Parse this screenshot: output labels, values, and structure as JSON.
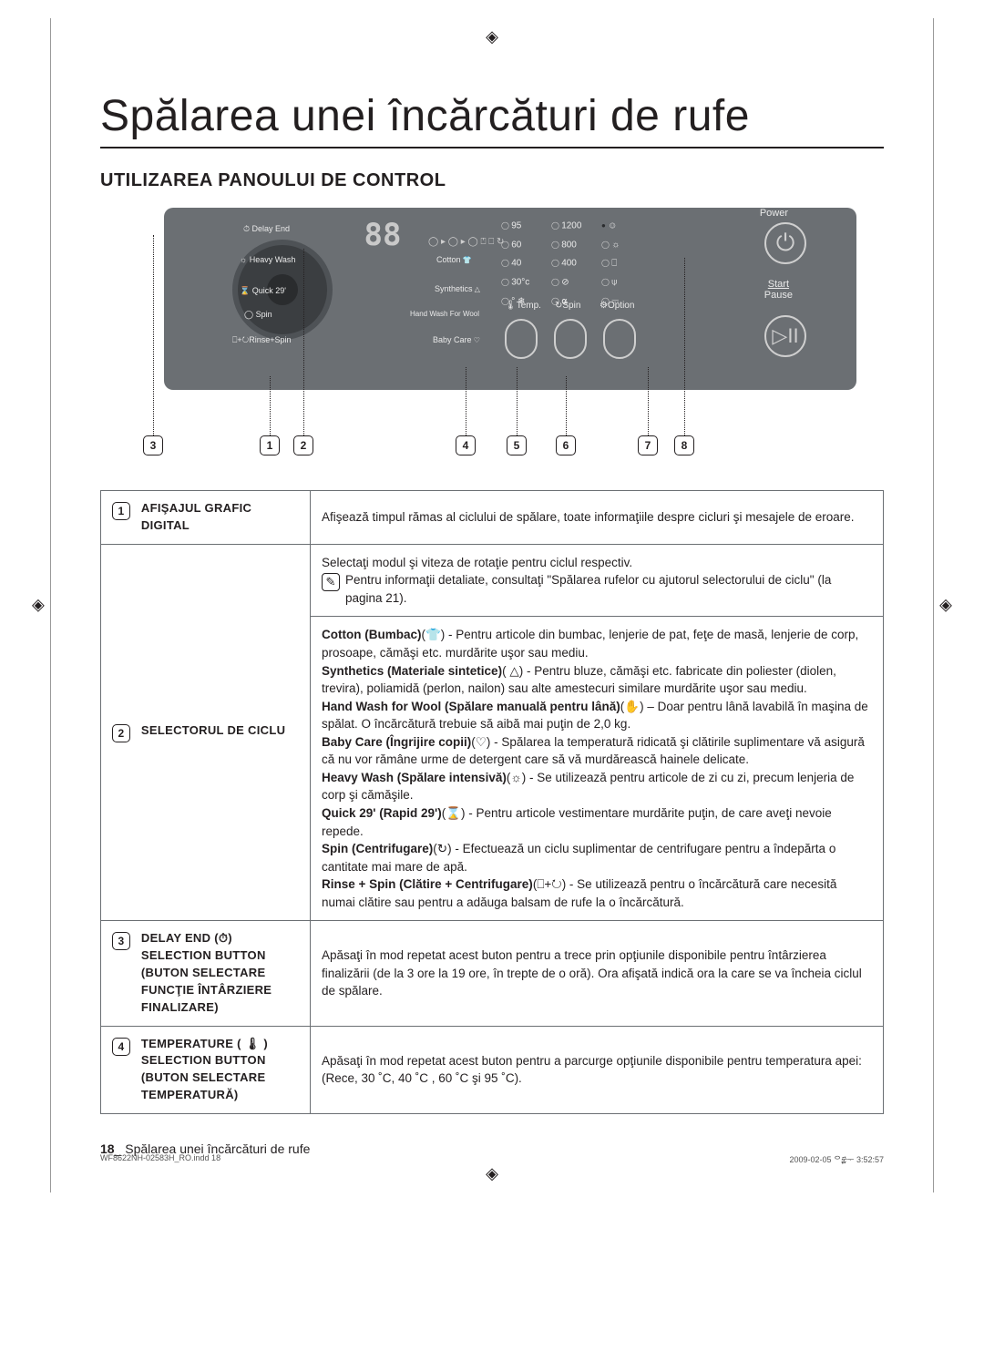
{
  "title": "Spălarea unei încărcături de rufe",
  "section": "UTILIZAREA PANOULUI DE CONTROL",
  "panel": {
    "display_value": "88",
    "power_label": "Power",
    "start_label_top": "Start",
    "start_label_bottom": "Pause",
    "temps": [
      "95",
      "60",
      "40",
      "30°c",
      "° ❄"
    ],
    "spins": [
      "1200",
      "800",
      "400",
      "⊘",
      "⍺"
    ],
    "options": [
      "☺",
      "☼",
      "⎕",
      "⍦",
      "⎓"
    ],
    "btn_labels": {
      "temp": "🌡Temp.",
      "spin": "↻Spin",
      "option": "⚙Option"
    },
    "dial_left": {
      "delay": "Delay End",
      "heavy": "Heavy Wash",
      "quick": "Quick 29'",
      "spin": "Spin",
      "rinse": "⎕+↻Rinse+Spin"
    },
    "dial_right": {
      "cotton": "Cotton",
      "synthetics": "Synthetics",
      "hand": "Hand Wash For Wool",
      "baby": "Baby Care"
    },
    "small_icons": "◯ ▸ ◯ ▸ ◯   ⍞ ⎕ ↻"
  },
  "callouts": [
    "1",
    "2",
    "3",
    "4",
    "5",
    "6",
    "7",
    "8"
  ],
  "rows": [
    {
      "num": "1",
      "label": "AFIŞAJUL GRAFIC DIGITAL",
      "desc_html": "Afişează timpul rămas al ciclului de spălare, toate informaţiile despre cicluri şi mesajele de eroare."
    },
    {
      "num": "2",
      "label": "SELECTORUL DE CICLU",
      "desc_html": "Selectaţi modul şi viteza de rotaţie pentru ciclul respectiv.<br><span class='note-icon'>✎</span><span style='display:inline-block;width:calc(100% - 34px);vertical-align:top;'>Pentru informaţii detaliate, consultaţi \"Spălarea rufelor cu ajutorul selectorului de ciclu\" (la pagina 21).</span><hr style='border:none;border-top:1px solid #6b6f73;margin:10px -12px;'> <b>Cotton (Bumbac)</b>(<span class='sym'>👕</span>) - Pentru articole din bumbac, lenjerie de pat, feţe de masă, lenjerie de corp, prosoape, cămăşi etc. murdărite uşor sau mediu.<br><b>Synthetics (Materiale sintetice)</b>( <span class='sym'>△</span>) - Pentru bluze, cămăşi etc. fabricate din poliester (diolen, trevira), poliamidă (perlon, nailon) sau alte amestecuri similare murdărite uşor sau mediu.<br><b>Hand Wash for Wool (Spălare manuală pentru lână)</b>(<span class='sym'>✋</span>) – Doar pentru lână lavabilă în maşina de spălat. O încărcătură trebuie să aibă mai puţin de 2,0 kg.<br><b>Baby Care (Îngrijire copii)</b>(<span class='sym'>♡</span>) - Spălarea la temperatură ridicată şi clătirile suplimentare vă asigură că nu vor rămâne urme de detergent care să vă murdărească hainele delicate.<br><b>Heavy Wash (Spălare intensivă)</b>(<span class='sym'>☼</span>) - Se utilizează pentru articole de zi cu zi, precum lenjeria de corp şi cămăşile.<br><b>Quick 29' (Rapid 29')</b>(<span class='sym'>⌛</span>) - Pentru articole vestimentare murdărite puţin, de care aveţi nevoie repede.<br><b>Spin (Centrifugare)</b>(<span class='sym'>↻</span>) - Efectuează un ciclu suplimentar de centrifugare pentru a îndepărta o cantitate mai mare de apă.<br><b>Rinse + Spin (Clătire + Centrifugare)</b>(<span class='sym'>⎕+↻</span>) - Se utilizează pentru o încărcătură care necesită numai clătire sau pentru a adăuga balsam de rufe la o încărcătură."
    },
    {
      "num": "3",
      "label": "DELAY END (⏱) SELECTION BUTTON (BUTON SELECTARE FUNCŢIE ÎNTÂRZIERE FINALIZARE)",
      "desc_html": "Apăsaţi în mod repetat acest buton pentru a trece prin opţiunile disponibile pentru întârzierea finalizării (de la 3 ore la 19 ore, în trepte de o oră). Ora afişată indică ora la care se va încheia ciclul de spălare."
    },
    {
      "num": "4",
      "label": "TEMPERATURE ( 🌡 ) SELECTION BUTTON (BUTON SELECTARE TEMPERATURĂ)",
      "desc_html": "Apăsaţi în mod repetat acest buton pentru a parcurge opţiunile disponibile pentru temperatura apei: (Rece, 30 ˚C, 40 ˚C , 60 ˚C şi 95 ˚C)."
    }
  ],
  "footer_page": "18",
  "footer_text": "Spălarea unei încărcături de rufe",
  "print_left": "WF8622NH-02583H_RO.indd   18",
  "print_right": "2009-02-05   ᄋ፰ᅮ  3:52:57",
  "colors": {
    "panel_bg": "#6b6f73",
    "dial_bg": "#3b3e41",
    "text": "#231f20",
    "border": "#6b6f73"
  }
}
